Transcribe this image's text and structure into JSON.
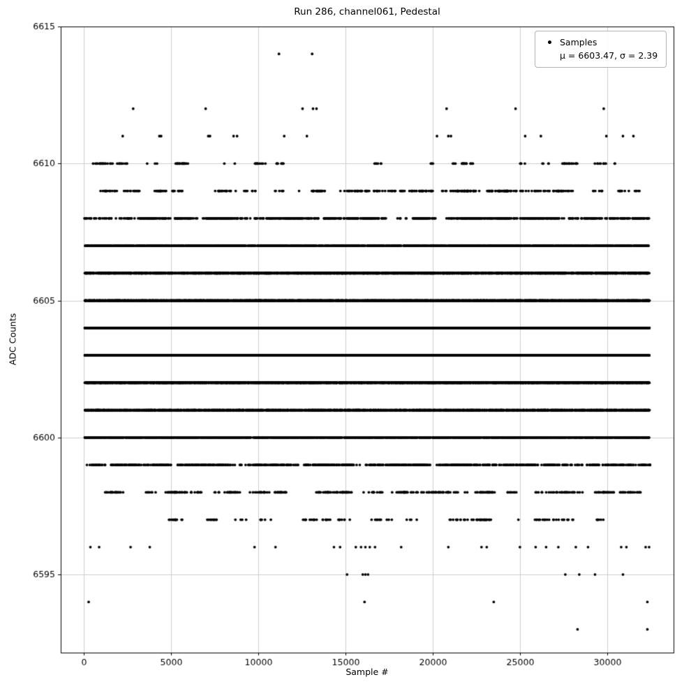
{
  "chart_data": {
    "type": "scatter",
    "title": "Run 286, channel061, Pedestal",
    "xlabel": "Sample #",
    "ylabel": "ADC Counts",
    "xlim": [
      -1300,
      33800
    ],
    "ylim": [
      6592.15,
      6615
    ],
    "xticks": [
      0,
      5000,
      10000,
      15000,
      20000,
      25000,
      30000
    ],
    "yticks": [
      6595,
      6600,
      6605,
      6610,
      6615
    ],
    "grid": true,
    "legend": {
      "position": "upper right",
      "marker_label": "Samples",
      "stats_label": "μ = 6603.47, σ = 2.39"
    },
    "stats": {
      "mu": 6603.47,
      "sigma": 2.39
    },
    "marker": {
      "color": "#000000",
      "size": 3.8
    },
    "bands": [
      {
        "adc": 6614,
        "points": [
          11200,
          13100
        ]
      },
      {
        "adc": 6612,
        "points": [
          2850,
          7000,
          12550,
          13150,
          13350,
          20800,
          24750,
          29800
        ]
      },
      {
        "adc": 6611,
        "points": [
          2250,
          4350,
          4450,
          7150,
          7250,
          8600,
          8800,
          11500,
          12800,
          20250,
          20900,
          21050,
          25300,
          26200,
          29950,
          30900,
          31500
        ]
      },
      {
        "adc": 6610,
        "count": 140
      },
      {
        "adc": 6609,
        "count": 390
      },
      {
        "adc": 6608,
        "count": 930
      },
      {
        "adc": 6607,
        "count": 1850
      },
      {
        "adc": 6606,
        "count": 3100
      },
      {
        "adc": 6605,
        "count": 4400
      },
      {
        "adc": 6604,
        "count": 5250
      },
      {
        "adc": 6603,
        "count": 5300
      },
      {
        "adc": 6602,
        "count": 4470
      },
      {
        "adc": 6601,
        "count": 3190
      },
      {
        "adc": 6600,
        "count": 1900
      },
      {
        "adc": 6599,
        "count": 960
      },
      {
        "adc": 6598,
        "count": 410
      },
      {
        "adc": 6597,
        "count": 150
      },
      {
        "adc": 6596,
        "points": [
          400,
          900,
          2700,
          3800,
          9800,
          11000,
          14350,
          14700,
          15600,
          15900,
          16150,
          16400,
          16700,
          18200,
          20900,
          22800,
          23100,
          25000,
          25900,
          26500,
          27200,
          28200,
          28900,
          30800,
          31100,
          32200,
          32400
        ]
      },
      {
        "adc": 6595,
        "points": [
          15100,
          16000,
          16150,
          16300,
          27600,
          28400,
          29300,
          30900
        ]
      },
      {
        "adc": 6594,
        "points": [
          300,
          16100,
          23500,
          32300
        ]
      },
      {
        "adc": 6593,
        "points": [
          28300,
          32300
        ]
      }
    ]
  }
}
